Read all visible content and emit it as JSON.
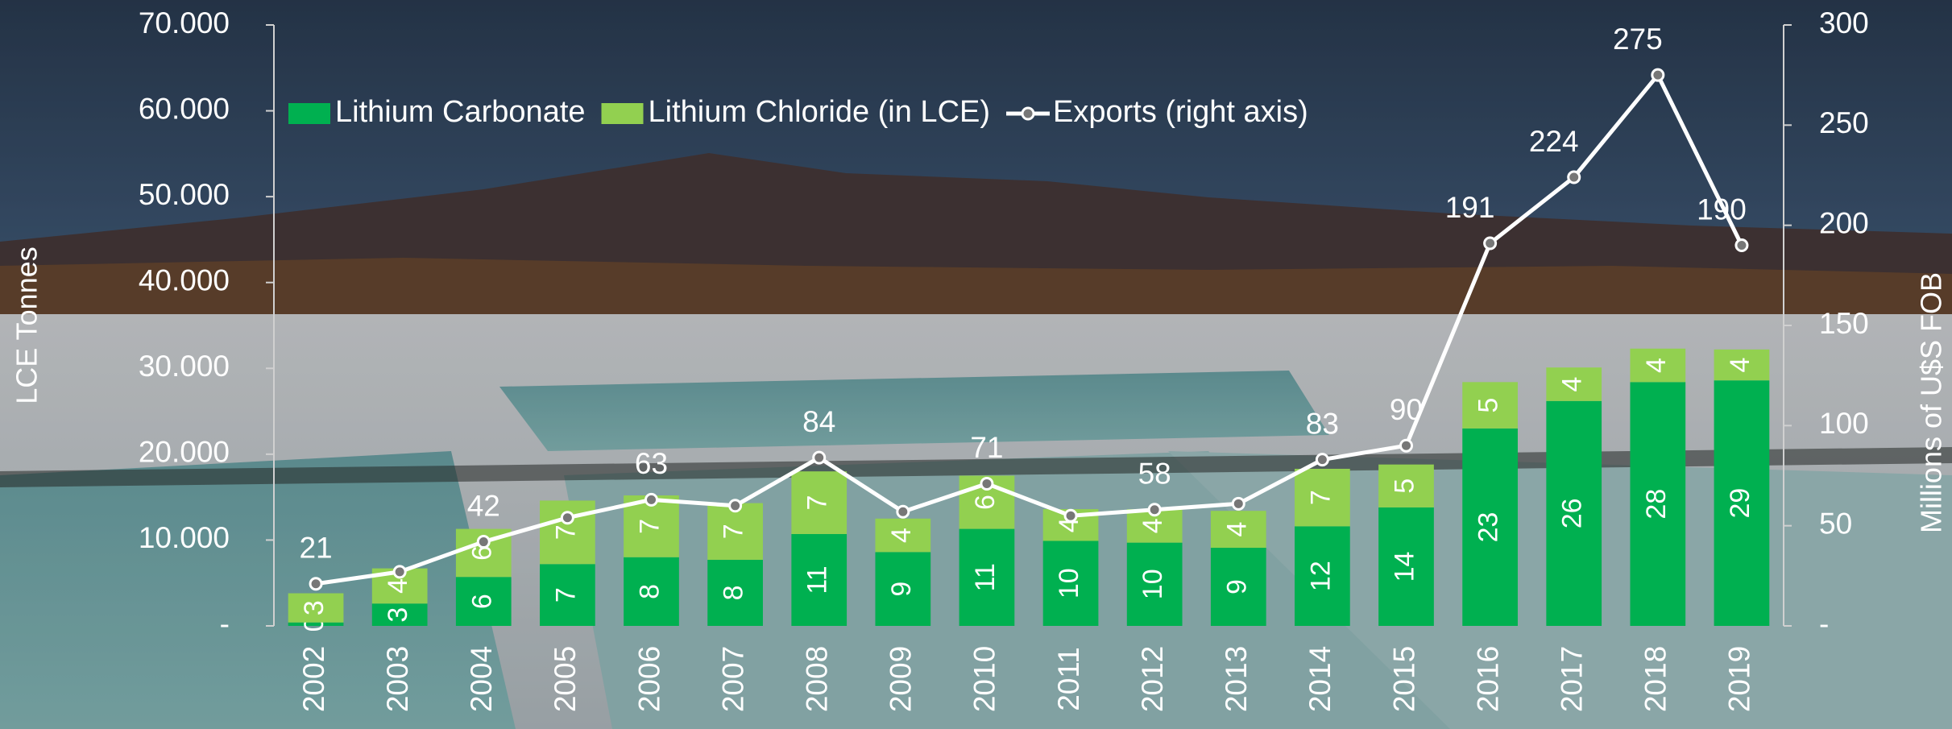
{
  "chart_data": {
    "type": "bar",
    "stacked": true,
    "categories": [
      "2002",
      "2003",
      "2004",
      "2005",
      "2006",
      "2007",
      "2008",
      "2009",
      "2010",
      "2011",
      "2012",
      "2013",
      "2014",
      "2015",
      "2016",
      "2017",
      "2018",
      "2019"
    ],
    "series": [
      {
        "name": "Lithium Carbonate",
        "color": "#00b050",
        "values": [
          400,
          2600,
          5700,
          7200,
          8000,
          7700,
          10700,
          8600,
          11300,
          9900,
          9700,
          9100,
          11600,
          13800,
          23000,
          26200,
          28400,
          28600
        ],
        "value_labels": [
          "0",
          "3",
          "6",
          "7",
          "8",
          "8",
          "11",
          "9",
          "11",
          "10",
          "10",
          "9",
          "12",
          "14",
          "23",
          "26",
          "28",
          "29"
        ]
      },
      {
        "name": "Lithium Chloride (in LCE)",
        "color": "#92d050",
        "values": [
          3400,
          4100,
          5600,
          7400,
          7200,
          6600,
          7300,
          3900,
          6200,
          3700,
          3900,
          4300,
          6700,
          5000,
          5400,
          3900,
          3900,
          3600
        ],
        "value_labels": [
          "3",
          "4",
          "6",
          "7",
          "7",
          "7",
          "7",
          "4",
          "6",
          "4",
          "4",
          "4",
          "7",
          "5",
          "5",
          "4",
          "4",
          "4"
        ]
      },
      {
        "name": "Exports (right axis)",
        "type": "line",
        "axis": "y2",
        "color": "#ffffff",
        "values": [
          21,
          27,
          42,
          54,
          63,
          60,
          84,
          57,
          71,
          55,
          58,
          61,
          83,
          90,
          191,
          224,
          275,
          190
        ],
        "value_labels": [
          "21",
          null,
          "42",
          null,
          "63",
          null,
          "84",
          null,
          "71",
          null,
          "58",
          null,
          "83",
          "90",
          "191",
          "224",
          "275",
          "190"
        ]
      }
    ],
    "y_label": "LCE Tonnes",
    "y2_label": "Millions of U$S FOB",
    "ylim": [
      0,
      70000
    ],
    "yticks": [
      {
        "value": 0,
        "label": "-"
      },
      {
        "value": 10000,
        "label": "10.000"
      },
      {
        "value": 20000,
        "label": "20.000"
      },
      {
        "value": 30000,
        "label": "30.000"
      },
      {
        "value": 40000,
        "label": "40.000"
      },
      {
        "value": 50000,
        "label": "50.000"
      },
      {
        "value": 60000,
        "label": "60.000"
      },
      {
        "value": 70000,
        "label": "70.000"
      }
    ],
    "y2lim": [
      0,
      300
    ],
    "y2ticks": [
      {
        "value": 0,
        "label": "-"
      },
      50,
      100,
      150,
      200,
      250,
      300
    ],
    "legend": "top",
    "grid": false
  }
}
